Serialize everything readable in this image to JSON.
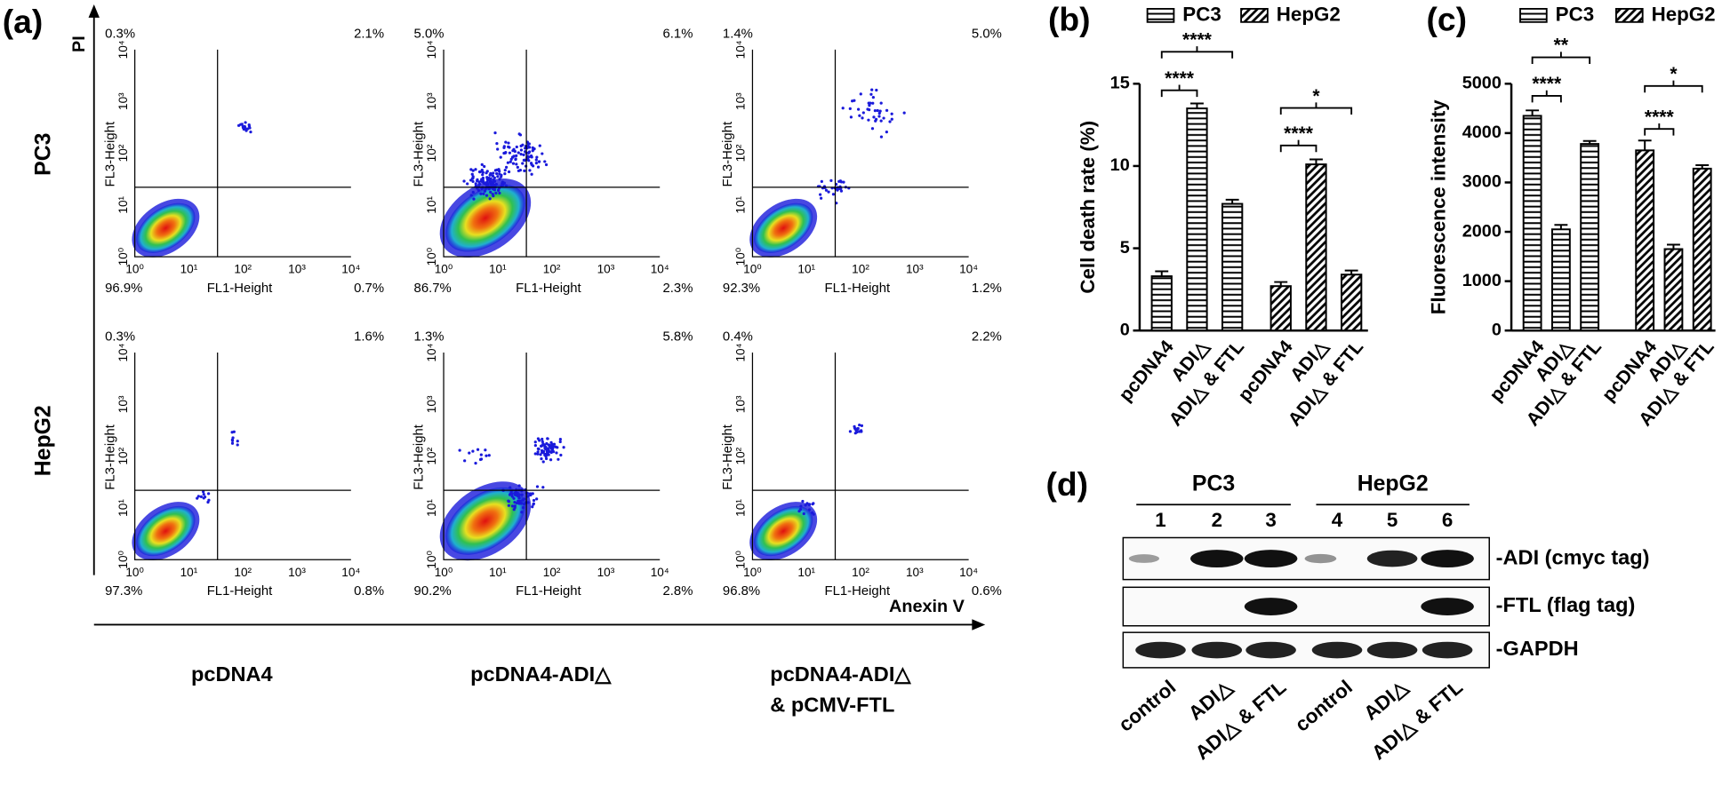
{
  "panel_a": {
    "label": "(a)",
    "y_axis": "PI",
    "x_axis": "Anexin V",
    "rows": [
      "PC3",
      "HepG2"
    ],
    "columns": [
      [
        "pcDNA4"
      ],
      [
        "pcDNA4-ADI△"
      ],
      [
        "pcDNA4-ADI△",
        "& pCMV-FTL"
      ]
    ],
    "plot_x_label": "FL1-Height",
    "plot_y_label": "FL3-Height",
    "tick_labels": [
      "10⁰",
      "10¹",
      "10²",
      "10³",
      "10⁴"
    ],
    "plots": [
      [
        {
          "ul": "0.3%",
          "ur": "2.1%",
          "ll": "96.9%",
          "lr": "0.7%"
        },
        {
          "ul": "5.0%",
          "ur": "6.1%",
          "ll": "86.7%",
          "lr": "2.3%"
        },
        {
          "ul": "1.4%",
          "ur": "5.0%",
          "ll": "92.3%",
          "lr": "1.2%"
        }
      ],
      [
        {
          "ul": "0.3%",
          "ur": "1.6%",
          "ll": "97.3%",
          "lr": "0.8%"
        },
        {
          "ul": "1.3%",
          "ur": "5.8%",
          "ll": "90.2%",
          "lr": "2.8%"
        },
        {
          "ul": "0.4%",
          "ur": "2.2%",
          "ll": "96.8%",
          "lr": "0.6%"
        }
      ]
    ]
  },
  "chart_data": [
    {
      "type": "bar",
      "label": "(b)",
      "y_label": "Cell death rate (%)",
      "categories": [
        "pcDNA4",
        "ADI△",
        "ADI△ & FTL"
      ],
      "series": [
        {
          "name": "PC3",
          "color": "#000000",
          "pattern": "horizontal",
          "values": [
            3.3,
            13.5,
            7.7
          ],
          "errors": [
            0.3,
            0.3,
            0.25
          ]
        },
        {
          "name": "HepG2",
          "color": "#000000",
          "pattern": "diagonal",
          "values": [
            2.7,
            10.1,
            3.4
          ],
          "errors": [
            0.25,
            0.3,
            0.25
          ]
        }
      ],
      "ylim": [
        0,
        15
      ],
      "yticks": [
        0,
        5,
        10,
        15
      ],
      "annotations": [
        "****",
        "****",
        "****",
        "*"
      ]
    },
    {
      "type": "bar",
      "label": "(c)",
      "y_label": "Fluorescence intensity",
      "categories": [
        "pcDNA4",
        "ADI△",
        "ADI△ & FTL"
      ],
      "series": [
        {
          "name": "PC3",
          "color": "#000000",
          "pattern": "horizontal",
          "values": [
            4350,
            2050,
            3780
          ],
          "errors": [
            110,
            90,
            60
          ]
        },
        {
          "name": "HepG2",
          "color": "#000000",
          "pattern": "diagonal",
          "values": [
            3650,
            1650,
            3280
          ],
          "errors": [
            200,
            90,
            70
          ]
        }
      ],
      "ylim": [
        0,
        5000
      ],
      "yticks": [
        0,
        1000,
        2000,
        3000,
        4000,
        5000
      ],
      "annotations": [
        "****",
        "**",
        "****",
        "*"
      ]
    }
  ],
  "panel_d": {
    "label": "(d)",
    "groups": [
      "PC3",
      "HepG2"
    ],
    "lanes": [
      "1",
      "2",
      "3",
      "4",
      "5",
      "6"
    ],
    "blots": [
      "-ADI (cmyc tag)",
      "-FTL (flag tag)",
      "-GAPDH"
    ],
    "lane_labels": [
      "control",
      "ADI△",
      "ADI△ & FTL",
      "control",
      "ADI△",
      "ADI△ & FTL"
    ]
  }
}
